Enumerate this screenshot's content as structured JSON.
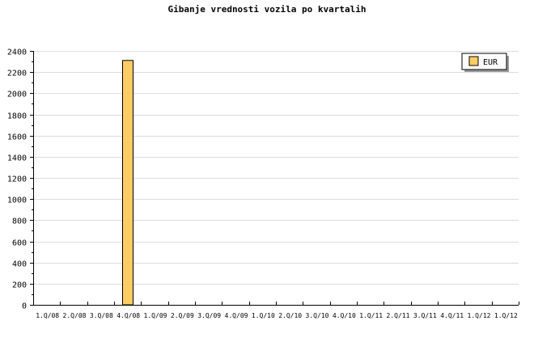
{
  "chart_data": {
    "type": "bar",
    "title": "Gibanje vrednosti vozila po kvartalih",
    "categories": [
      "1.Q/08",
      "2.Q/08",
      "3.Q/08",
      "4.Q/08",
      "1.Q/09",
      "2.Q/09",
      "3.Q/09",
      "4.Q/09",
      "1.Q/10",
      "2.Q/10",
      "3.Q/10",
      "4.Q/10",
      "1.Q/11",
      "2.Q/11",
      "3.Q/11",
      "4.Q/11",
      "1.Q/12",
      "1.Q/12"
    ],
    "series": [
      {
        "name": "EUR",
        "color": "#ffcc66",
        "values": [
          null,
          null,
          null,
          2310,
          null,
          null,
          null,
          null,
          null,
          null,
          null,
          null,
          null,
          null,
          null,
          null,
          null,
          null
        ]
      }
    ],
    "ylim": [
      0,
      2400
    ],
    "yticks": [
      0,
      200,
      400,
      600,
      800,
      1000,
      1200,
      1400,
      1600,
      1800,
      2000,
      2200,
      2400
    ],
    "grid": true,
    "legend": "top-right"
  }
}
